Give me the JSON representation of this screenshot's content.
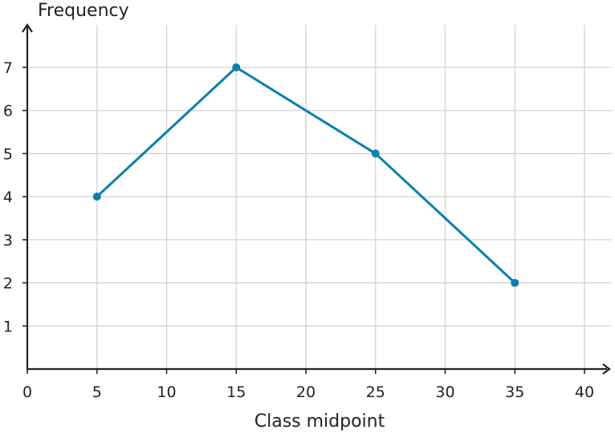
{
  "chart_data": {
    "type": "line",
    "xlabel": "Class midpoint",
    "ylabel": "Frequency",
    "xlim": [
      0,
      40
    ],
    "ylim": [
      0,
      7
    ],
    "x_ticks": [
      0,
      5,
      10,
      15,
      20,
      25,
      30,
      35,
      40
    ],
    "y_ticks": [
      1,
      2,
      3,
      4,
      5,
      6,
      7
    ],
    "grid": true,
    "series": [
      {
        "points": [
          {
            "x": 5,
            "y": 4
          },
          {
            "x": 15,
            "y": 7
          },
          {
            "x": 25,
            "y": 5
          },
          {
            "x": 35,
            "y": 2
          }
        ],
        "color": "#0a7fb0"
      }
    ]
  }
}
